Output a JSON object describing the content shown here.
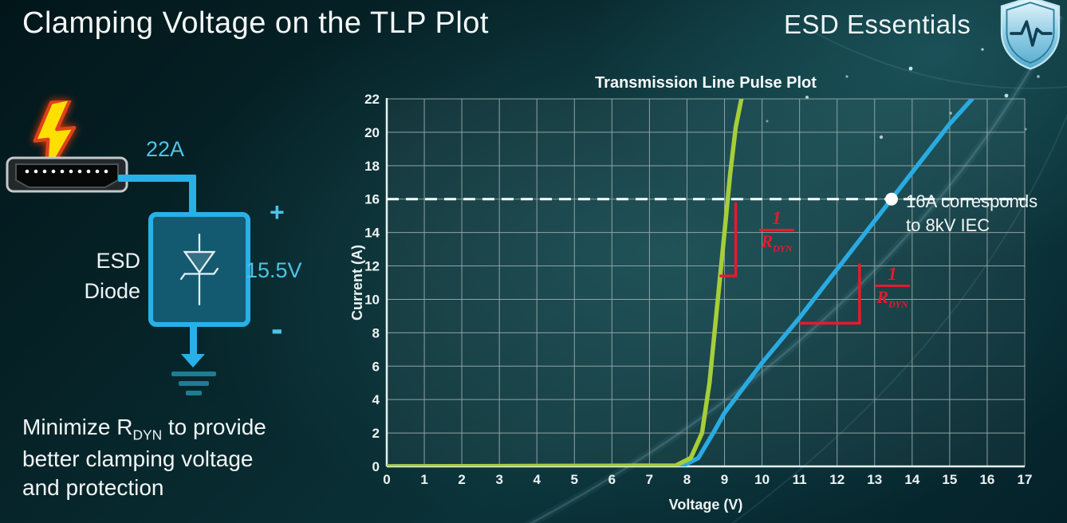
{
  "header": {
    "title": "Clamping Voltage on the TLP Plot",
    "brand": "ESD Essentials"
  },
  "diagram": {
    "current_label": "22A",
    "device_line1": "ESD",
    "device_line2": "Diode",
    "plus": "+",
    "voltage_label": "15.5V",
    "minus": "-",
    "accent_color": "#29b0e8",
    "label_color": "#4fc3e8"
  },
  "footnote": {
    "line1_pre": "Minimize R",
    "line1_sub": "DYN",
    "line1_post": " to provide",
    "line2": "better clamping voltage",
    "line3": "and protection"
  },
  "chart_data": {
    "type": "line",
    "title": "Transmission Line Pulse Plot",
    "xlabel": "Voltage (V)",
    "ylabel": "Current (A)",
    "xlim": [
      0,
      17
    ],
    "ylim": [
      0,
      22
    ],
    "x_ticks": [
      0,
      1,
      2,
      3,
      4,
      5,
      6,
      7,
      8,
      9,
      10,
      11,
      12,
      13,
      14,
      15,
      16,
      17
    ],
    "y_ticks": [
      0,
      2,
      4,
      6,
      8,
      10,
      12,
      14,
      16,
      18,
      20,
      22
    ],
    "grid": true,
    "legend": "none",
    "colors": {
      "grid": "#8fa3a3",
      "axis": "#e9efef",
      "green": "#a6ce39",
      "blue": "#29abe2",
      "red": "#e8192c",
      "reference": "#ffffff"
    },
    "series": [
      {
        "name": "blue_curve",
        "color": "#29abe2",
        "width": 5.5,
        "points": [
          [
            0,
            0
          ],
          [
            7.9,
            0.05
          ],
          [
            8.3,
            0.5
          ],
          [
            8.7,
            2.0
          ],
          [
            9.0,
            3.2
          ],
          [
            10,
            6.2
          ],
          [
            11,
            8.9
          ],
          [
            12,
            11.8
          ],
          [
            13,
            14.7
          ],
          [
            13.45,
            16
          ],
          [
            14,
            17.6
          ],
          [
            15,
            20.5
          ],
          [
            15.6,
            22
          ]
        ]
      },
      {
        "name": "green_curve",
        "color": "#a6ce39",
        "width": 5.5,
        "points": [
          [
            0,
            0
          ],
          [
            7.7,
            0.05
          ],
          [
            8.1,
            0.5
          ],
          [
            8.4,
            2.0
          ],
          [
            8.6,
            5.0
          ],
          [
            8.8,
            9.5
          ],
          [
            9.0,
            14.0
          ],
          [
            9.15,
            17.5
          ],
          [
            9.3,
            20.3
          ],
          [
            9.45,
            22
          ]
        ]
      }
    ],
    "reference_line": {
      "y": 16,
      "style": "dashed"
    },
    "marker_point": {
      "x": 13.45,
      "y": 16
    },
    "marker_annotation": {
      "line1": "16A corresponds",
      "line2": "to 8kV IEC"
    },
    "slope_markers": [
      {
        "points": [
          [
            8.87,
            11.4
          ],
          [
            9.3,
            11.4
          ],
          [
            9.3,
            15.8
          ]
        ]
      },
      {
        "points": [
          [
            11.0,
            8.57
          ],
          [
            12.6,
            8.57
          ],
          [
            12.6,
            12.14
          ]
        ]
      }
    ],
    "fraction": {
      "numerator": "1",
      "denominator_base": "R",
      "denominator_sub": "DYN"
    }
  }
}
